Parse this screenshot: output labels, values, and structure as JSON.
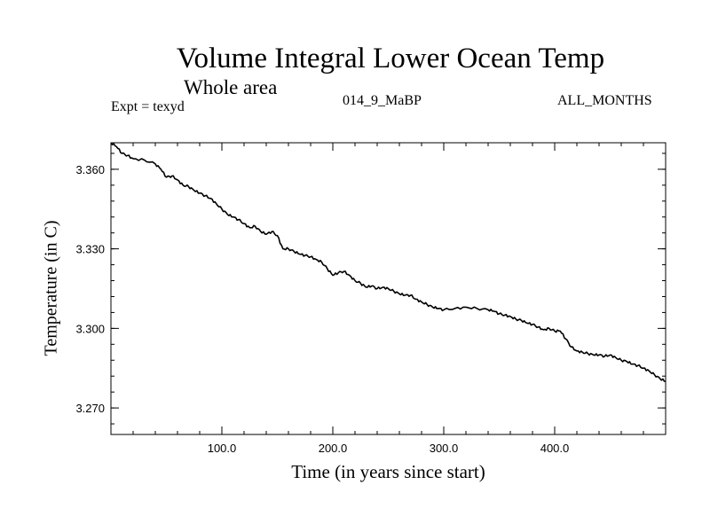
{
  "chart_data": {
    "type": "line",
    "title": "Volume Integral Lower Ocean Temp",
    "subtitle": "Whole area",
    "annotations": {
      "left": "Expt = texyd",
      "center": "014_9_MaBP",
      "right": "ALL_MONTHS"
    },
    "xlabel": "Time (in years since start)",
    "ylabel": "Temperature (in C)",
    "xlim": [
      0,
      500
    ],
    "ylim": [
      3.26,
      3.37
    ],
    "x_ticks": [
      100,
      200,
      300,
      400
    ],
    "x_tick_labels": [
      "100.0",
      "200.0",
      "300.0",
      "400.0"
    ],
    "y_ticks": [
      3.27,
      3.3,
      3.33,
      3.36
    ],
    "y_tick_labels": [
      "3.270",
      "3.300",
      "3.330",
      "3.360"
    ],
    "grid": false,
    "line_color": "#000000",
    "series": [
      {
        "x": [
          0,
          5,
          10,
          15,
          20,
          30,
          40,
          45,
          50,
          55,
          60,
          65,
          70,
          75,
          80,
          85,
          90,
          95,
          100,
          105,
          110,
          115,
          120,
          125,
          130,
          135,
          140,
          145,
          150,
          155,
          160,
          165,
          170,
          175,
          180,
          185,
          190,
          195,
          200,
          205,
          210,
          215,
          220,
          225,
          230,
          235,
          240,
          245,
          250,
          255,
          260,
          265,
          270,
          275,
          280,
          285,
          290,
          295,
          300,
          310,
          320,
          330,
          340,
          345,
          350,
          355,
          360,
          365,
          370,
          375,
          380,
          385,
          390,
          395,
          400,
          405,
          410,
          415,
          420,
          425,
          430,
          435,
          440,
          445,
          450,
          455,
          460,
          465,
          470,
          475,
          480,
          485,
          490,
          495,
          500
        ],
        "values": [
          3.37,
          3.3685,
          3.366,
          3.3652,
          3.364,
          3.3635,
          3.362,
          3.36,
          3.357,
          3.3575,
          3.356,
          3.354,
          3.3535,
          3.352,
          3.351,
          3.35,
          3.349,
          3.347,
          3.345,
          3.343,
          3.342,
          3.341,
          3.3395,
          3.338,
          3.3385,
          3.3365,
          3.3355,
          3.3365,
          3.335,
          3.33,
          3.33,
          3.329,
          3.328,
          3.3275,
          3.327,
          3.326,
          3.325,
          3.3225,
          3.32,
          3.321,
          3.3215,
          3.32,
          3.318,
          3.317,
          3.3155,
          3.316,
          3.315,
          3.3155,
          3.315,
          3.314,
          3.313,
          3.3125,
          3.3125,
          3.311,
          3.31,
          3.309,
          3.308,
          3.3075,
          3.307,
          3.3075,
          3.308,
          3.3075,
          3.307,
          3.3065,
          3.3055,
          3.305,
          3.3045,
          3.3035,
          3.303,
          3.302,
          3.3015,
          3.3005,
          3.2995,
          3.3,
          3.299,
          3.299,
          3.296,
          3.293,
          3.2915,
          3.291,
          3.2905,
          3.29,
          3.29,
          3.2895,
          3.29,
          3.289,
          3.288,
          3.2875,
          3.2865,
          3.286,
          3.285,
          3.284,
          3.2825,
          3.281,
          3.28
        ]
      }
    ]
  }
}
